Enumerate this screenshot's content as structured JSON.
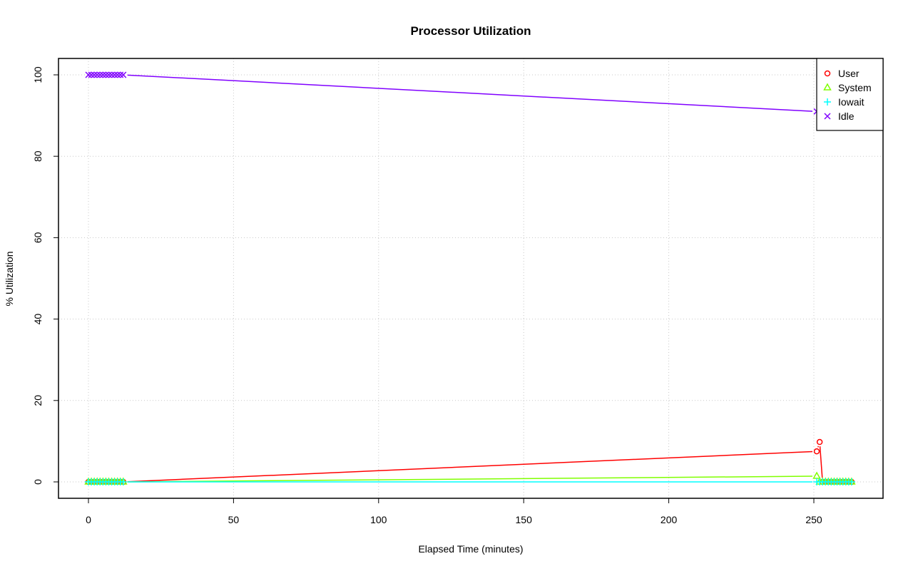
{
  "chart_data": {
    "type": "line",
    "title": "Processor Utilization",
    "xlabel": "Elapsed Time (minutes)",
    "ylabel": "% Utilization",
    "xlim": [
      -10,
      273
    ],
    "ylim": [
      -4,
      104
    ],
    "xticks": [
      0,
      50,
      100,
      150,
      200,
      250
    ],
    "yticks": [
      0,
      20,
      40,
      60,
      80,
      100
    ],
    "grid": true,
    "legend_position": "top-right",
    "x": [
      0,
      1,
      2,
      3,
      4,
      5,
      6,
      7,
      8,
      9,
      10,
      11,
      12,
      251,
      252,
      253,
      254,
      255,
      256,
      257,
      258,
      259,
      260,
      261,
      262,
      263
    ],
    "series": [
      {
        "name": "User",
        "color": "#FF0000",
        "marker": "circle",
        "values": [
          0,
          0,
          0,
          0,
          0,
          0,
          0,
          0,
          0,
          0,
          0,
          0,
          0,
          7.5,
          9.8,
          0,
          0,
          0,
          0,
          0,
          0,
          0,
          0,
          0,
          0,
          0
        ]
      },
      {
        "name": "System",
        "color": "#80FF00",
        "marker": "triangle",
        "values": [
          0,
          0,
          0,
          0,
          0,
          0,
          0,
          0,
          0,
          0,
          0,
          0,
          0,
          1.4,
          0,
          0,
          0,
          0,
          0,
          0,
          0,
          0,
          0,
          0,
          0,
          0
        ]
      },
      {
        "name": "Iowait",
        "color": "#00FFFF",
        "marker": "plus",
        "values": [
          0,
          0,
          0,
          0,
          0,
          0,
          0,
          0,
          0,
          0,
          0,
          0,
          0,
          0,
          0,
          0,
          0,
          0,
          0,
          0,
          0,
          0,
          0,
          0,
          0,
          0
        ]
      },
      {
        "name": "Idle",
        "color": "#8000FF",
        "marker": "cross",
        "values": [
          100,
          100,
          100,
          100,
          100,
          100,
          100,
          100,
          100,
          100,
          100,
          100,
          100,
          91,
          90,
          100,
          100,
          100,
          100,
          100,
          100,
          100,
          100,
          100,
          100,
          100
        ]
      }
    ]
  }
}
